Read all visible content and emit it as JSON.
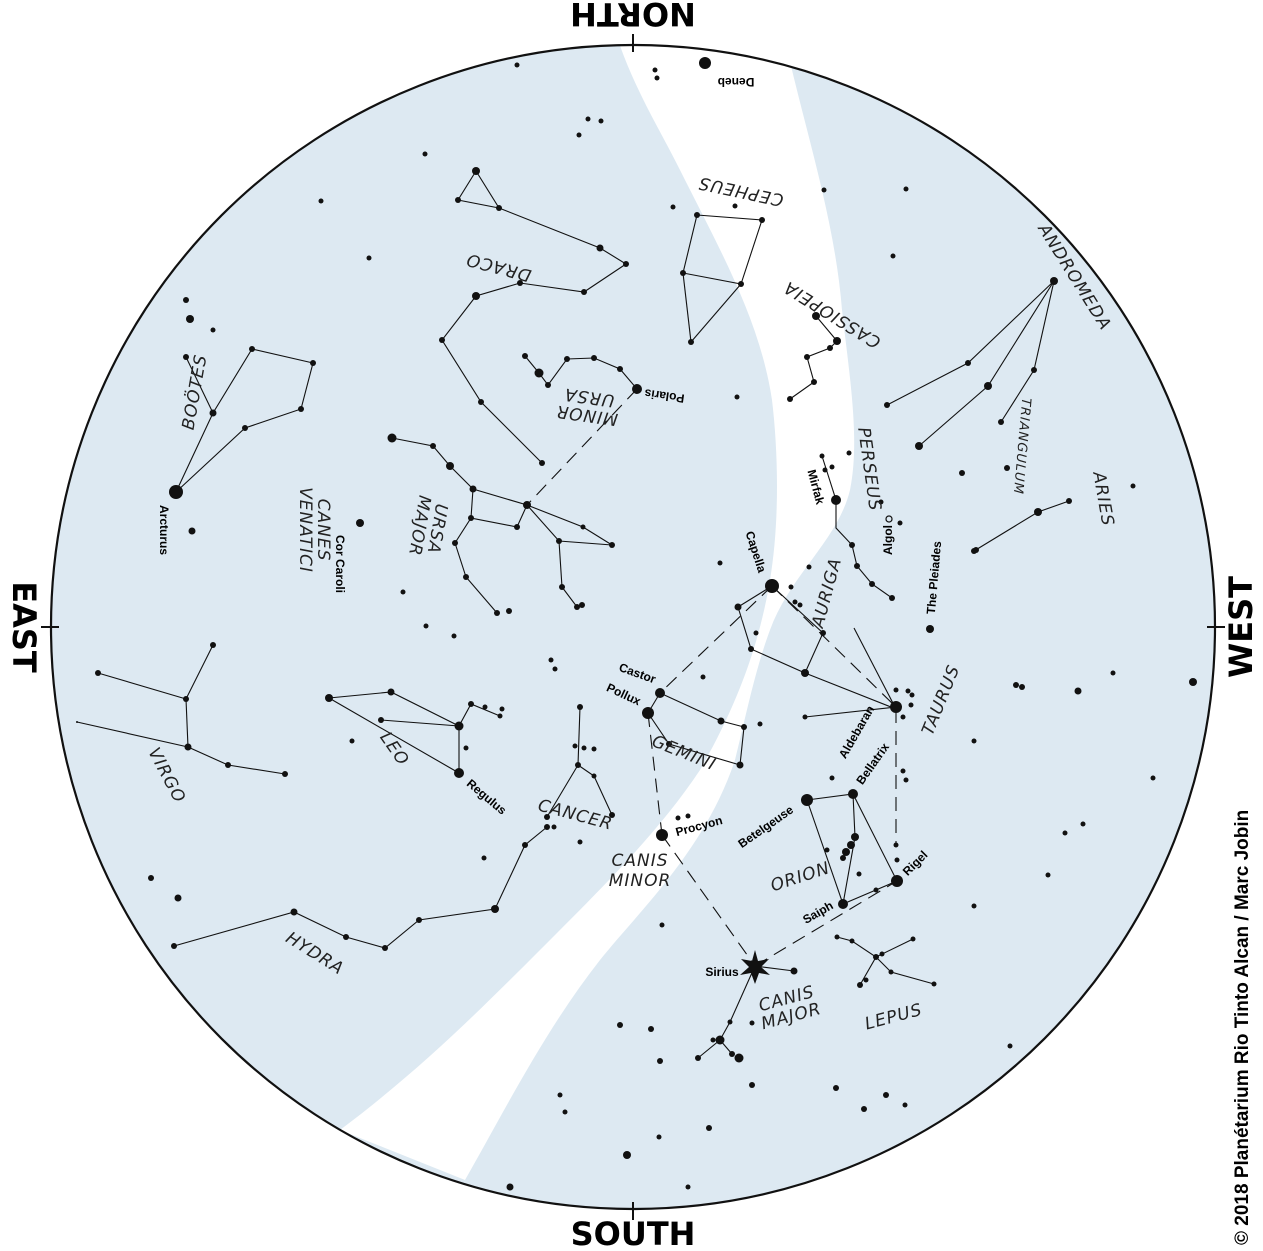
{
  "cardinal": {
    "north": "NORTH",
    "south": "SOUTH",
    "east": "EAST",
    "west": "WEST"
  },
  "copyright": "© 2018 Planétarium Rio Tinto Alcan / Marc Jobin",
  "colors": {
    "sky": "#dde9f2",
    "milky_way": "#ffffff",
    "ink": "#111111"
  },
  "constellations": [
    {
      "id": "cepheus",
      "text": [
        "CEPHEUS"
      ]
    },
    {
      "id": "draco",
      "text": [
        "DRACO"
      ]
    },
    {
      "id": "cassiopeia",
      "text": [
        "CASSIOPEIA"
      ]
    },
    {
      "id": "andromeda",
      "text": [
        "ANDROMEDA"
      ]
    },
    {
      "id": "ursa-minor",
      "text": [
        "URSA",
        "MINOR"
      ]
    },
    {
      "id": "bootes",
      "text": [
        "BOÖTES"
      ]
    },
    {
      "id": "canes-venatici",
      "text": [
        "CANES",
        "VENATICI"
      ]
    },
    {
      "id": "ursa-major",
      "text": [
        "URSA",
        "MAJOR"
      ]
    },
    {
      "id": "perseus",
      "text": [
        "PERSEUS"
      ]
    },
    {
      "id": "triangulum",
      "text": [
        "TRIANGULUM"
      ]
    },
    {
      "id": "aries",
      "text": [
        "ARIES"
      ]
    },
    {
      "id": "auriga",
      "text": [
        "AURIGA"
      ]
    },
    {
      "id": "taurus",
      "text": [
        "TAURUS"
      ]
    },
    {
      "id": "gemini",
      "text": [
        "GEMINI"
      ]
    },
    {
      "id": "leo",
      "text": [
        "LEO"
      ]
    },
    {
      "id": "virgo",
      "text": [
        "VIRGO"
      ]
    },
    {
      "id": "cancer",
      "text": [
        "CANCER"
      ]
    },
    {
      "id": "canis-minor",
      "text": [
        "CANIS",
        "MINOR"
      ]
    },
    {
      "id": "orion",
      "text": [
        "ORION"
      ]
    },
    {
      "id": "hydra",
      "text": [
        "HYDRA"
      ]
    },
    {
      "id": "canis-major",
      "text": [
        "CANIS",
        "MAJOR"
      ]
    },
    {
      "id": "lepus",
      "text": [
        "LEPUS"
      ]
    }
  ],
  "stars": [
    {
      "id": "deneb",
      "text": "Deneb"
    },
    {
      "id": "polaris",
      "text": "Polaris"
    },
    {
      "id": "arcturus",
      "text": "Arcturus"
    },
    {
      "id": "cor-caroli",
      "text": "Cor Caroli"
    },
    {
      "id": "mirfak",
      "text": "Mirfak"
    },
    {
      "id": "algol",
      "text": "Algol"
    },
    {
      "id": "pleiades",
      "text": "The Pleiades"
    },
    {
      "id": "capella",
      "text": "Capella"
    },
    {
      "id": "castor",
      "text": "Castor"
    },
    {
      "id": "pollux",
      "text": "Pollux"
    },
    {
      "id": "aldebaran",
      "text": "Aldebaran"
    },
    {
      "id": "bellatrix",
      "text": "Bellatrix"
    },
    {
      "id": "betelgeuse",
      "text": "Betelgeuse"
    },
    {
      "id": "regulus",
      "text": "Regulus"
    },
    {
      "id": "procyon",
      "text": "Procyon"
    },
    {
      "id": "rigel",
      "text": "Rigel"
    },
    {
      "id": "saiph",
      "text": "Saiph"
    },
    {
      "id": "sirius",
      "text": "Sirius"
    }
  ]
}
